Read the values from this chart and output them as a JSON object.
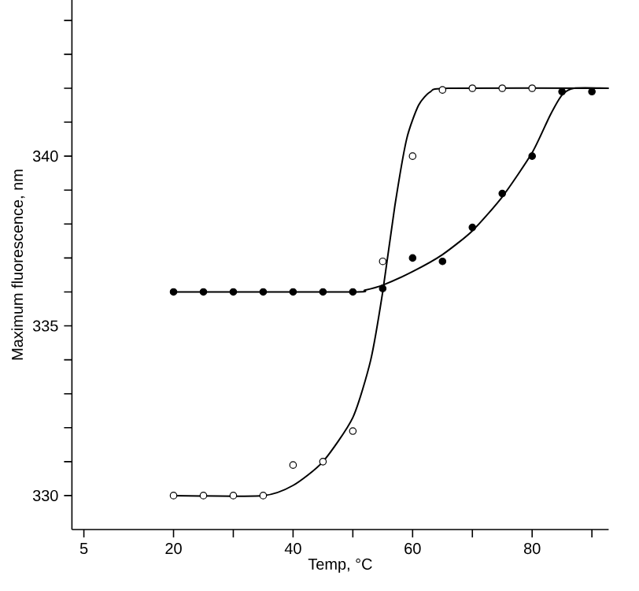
{
  "chart_data": {
    "type": "scatter",
    "xlabel": "Temp, °C",
    "ylabel": "Maximum fluorescence, nm",
    "xlim": [
      3,
      92.8
    ],
    "ylim": [
      329,
      344.6
    ],
    "xticks": [
      5,
      20,
      {
        "value": 30,
        "label": null
      },
      40,
      {
        "value": 50,
        "label": null
      },
      60,
      {
        "value": 70,
        "label": null
      },
      80,
      {
        "value": 90,
        "label": null
      }
    ],
    "yticks": [
      330,
      {
        "value": 331,
        "label": null
      },
      {
        "value": 332,
        "label": null
      },
      {
        "value": 333,
        "label": null
      },
      {
        "value": 334,
        "label": null
      },
      335,
      {
        "value": 336,
        "label": null
      },
      {
        "value": 337,
        "label": null
      },
      {
        "value": 338,
        "label": null
      },
      {
        "value": 339,
        "label": null
      },
      340,
      {
        "value": 341,
        "label": null
      },
      {
        "value": 342,
        "label": null
      },
      {
        "value": 343,
        "label": null
      },
      {
        "value": 344,
        "label": null
      }
    ],
    "grid": false,
    "series": [
      {
        "color": "#000000",
        "marker": "circle",
        "x": [
          20,
          25,
          30,
          35,
          40,
          45,
          50,
          55,
          60,
          65,
          70,
          75,
          80,
          85,
          90
        ],
        "values": [
          336,
          336,
          336,
          336,
          336,
          336,
          336,
          336.1,
          337,
          336.9,
          337.9,
          338.9,
          340,
          341.9,
          341.9
        ]
      },
      {
        "color": "#ffffff",
        "marker": "circle",
        "x": [
          20,
          25,
          30,
          35,
          40,
          45,
          50,
          55,
          60,
          65,
          70,
          75,
          80
        ],
        "values": [
          330,
          330,
          330,
          330,
          330.9,
          331,
          331.9,
          336.9,
          340,
          341.95,
          342,
          342,
          342
        ]
      },
      {
        "type": "line",
        "color": "#000000",
        "marker": "none",
        "x": [
          20,
          35,
          40,
          45,
          50,
          53,
          55,
          57,
          59,
          61,
          63,
          66,
          92.8
        ],
        "values": [
          330,
          330,
          330.3,
          331,
          332.3,
          334,
          336,
          338.5,
          340.5,
          341.5,
          341.9,
          342,
          342
        ]
      },
      {
        "type": "line",
        "color": "#000000",
        "marker": "none",
        "x": [
          20,
          50,
          52,
          55,
          60,
          65,
          70,
          75,
          80,
          83,
          85,
          87,
          92.8
        ],
        "values": [
          336,
          336,
          336.05,
          336.2,
          336.6,
          337.1,
          337.8,
          338.8,
          340.1,
          341.2,
          341.8,
          342,
          342
        ]
      }
    ]
  }
}
